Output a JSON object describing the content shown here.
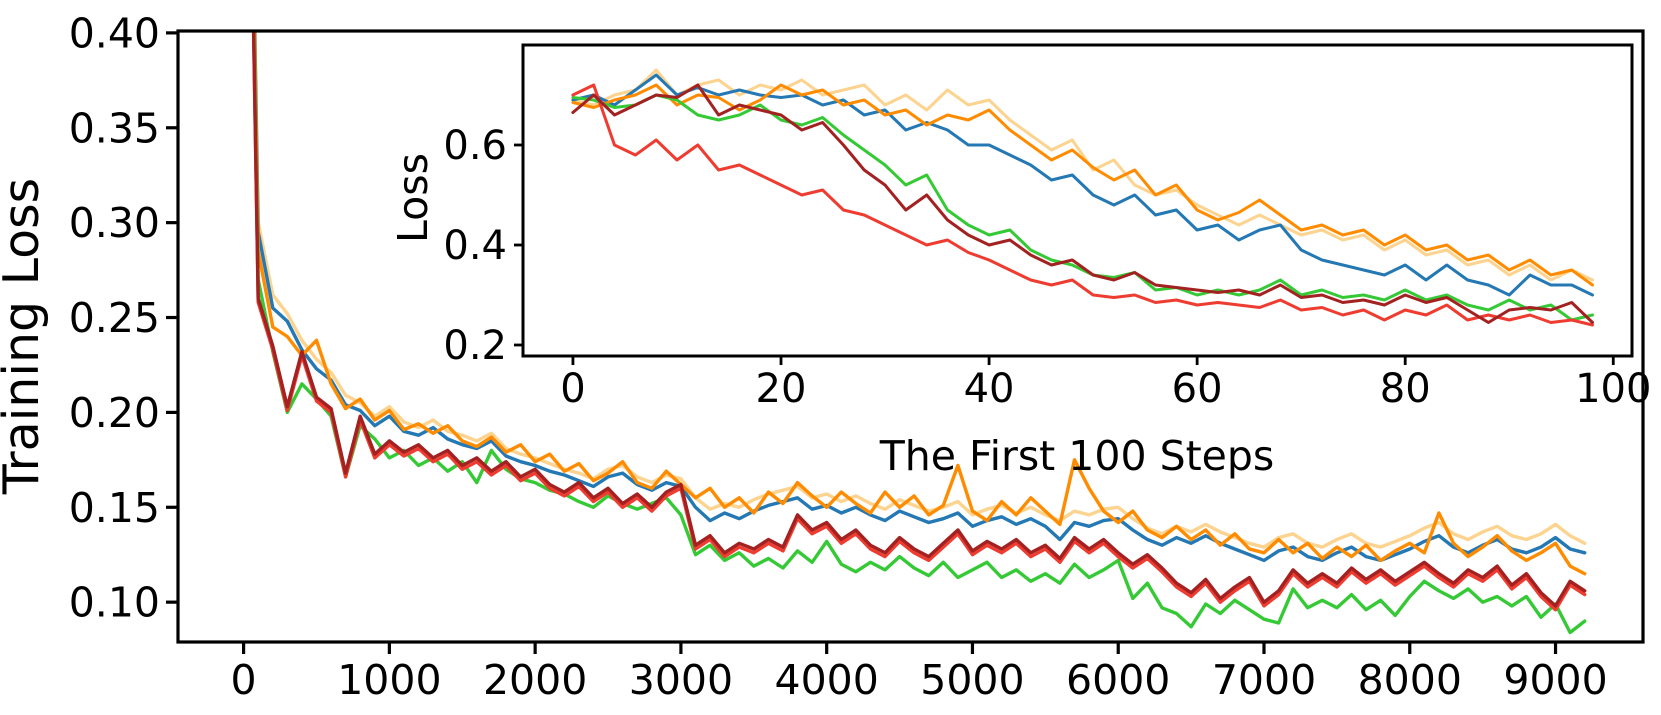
{
  "figure": {
    "background": "#ffffff",
    "axis_color": "#000000"
  },
  "chart_data": [
    {
      "type": "line",
      "title": "",
      "xlabel": "",
      "ylabel": "Training Loss",
      "xlim": [
        -450,
        9600
      ],
      "ylim": [
        0.079,
        0.401
      ],
      "grid": false,
      "legend": false,
      "xticks": {
        "values": [
          0,
          1000,
          2000,
          3000,
          4000,
          5000,
          6000,
          7000,
          8000,
          9000
        ],
        "labels": [
          "0",
          "1000",
          "2000",
          "3000",
          "4000",
          "5000",
          "6000",
          "7000",
          "8000",
          "9000"
        ]
      },
      "yticks": {
        "values": [
          0.1,
          0.15,
          0.2,
          0.25,
          0.3,
          0.35,
          0.4
        ],
        "labels": [
          "0.10",
          "0.15",
          "0.20",
          "0.25",
          "0.30",
          "0.35",
          "0.40"
        ]
      },
      "x_start": 0,
      "x_step": 100,
      "series": [
        {
          "name": "light-orange",
          "color": "#FCD38F",
          "values": [
            0.75,
            0.3,
            0.262,
            0.252,
            0.238,
            0.228,
            0.221,
            0.209,
            0.205,
            0.198,
            0.203,
            0.195,
            0.192,
            0.196,
            0.19,
            0.188,
            0.185,
            0.189,
            0.181,
            0.178,
            0.176,
            0.173,
            0.17,
            0.168,
            0.165,
            0.17,
            0.172,
            0.166,
            0.163,
            0.167,
            0.165,
            0.155,
            0.149,
            0.152,
            0.15,
            0.154,
            0.157,
            0.159,
            0.161,
            0.155,
            0.157,
            0.153,
            0.156,
            0.152,
            0.149,
            0.154,
            0.151,
            0.148,
            0.15,
            0.153,
            0.146,
            0.149,
            0.151,
            0.147,
            0.15,
            0.146,
            0.143,
            0.148,
            0.146,
            0.149,
            0.15,
            0.144,
            0.139,
            0.136,
            0.14,
            0.137,
            0.141,
            0.137,
            0.134,
            0.131,
            0.129,
            0.134,
            0.136,
            0.131,
            0.129,
            0.133,
            0.136,
            0.131,
            0.129,
            0.132,
            0.135,
            0.139,
            0.142,
            0.136,
            0.133,
            0.137,
            0.14,
            0.135,
            0.133,
            0.136,
            0.141,
            0.135,
            0.131
          ]
        },
        {
          "name": "blue",
          "color": "#2478B4",
          "values": [
            0.74,
            0.295,
            0.255,
            0.248,
            0.233,
            0.223,
            0.217,
            0.204,
            0.201,
            0.193,
            0.198,
            0.19,
            0.188,
            0.192,
            0.186,
            0.183,
            0.181,
            0.185,
            0.177,
            0.174,
            0.172,
            0.169,
            0.167,
            0.164,
            0.161,
            0.166,
            0.168,
            0.162,
            0.159,
            0.163,
            0.161,
            0.15,
            0.143,
            0.147,
            0.144,
            0.148,
            0.151,
            0.153,
            0.155,
            0.149,
            0.151,
            0.147,
            0.15,
            0.146,
            0.143,
            0.148,
            0.145,
            0.142,
            0.144,
            0.147,
            0.14,
            0.143,
            0.145,
            0.141,
            0.144,
            0.14,
            0.133,
            0.142,
            0.14,
            0.143,
            0.144,
            0.138,
            0.133,
            0.13,
            0.134,
            0.131,
            0.135,
            0.131,
            0.128,
            0.125,
            0.122,
            0.127,
            0.129,
            0.124,
            0.122,
            0.126,
            0.129,
            0.124,
            0.122,
            0.125,
            0.128,
            0.132,
            0.135,
            0.129,
            0.126,
            0.13,
            0.133,
            0.128,
            0.126,
            0.129,
            0.134,
            0.128,
            0.126
          ]
        },
        {
          "name": "orange",
          "color": "#FF8C00",
          "values": [
            0.73,
            0.285,
            0.245,
            0.24,
            0.23,
            0.238,
            0.215,
            0.202,
            0.207,
            0.196,
            0.201,
            0.191,
            0.194,
            0.189,
            0.193,
            0.185,
            0.182,
            0.187,
            0.179,
            0.183,
            0.174,
            0.178,
            0.169,
            0.173,
            0.164,
            0.168,
            0.174,
            0.163,
            0.16,
            0.169,
            0.162,
            0.155,
            0.16,
            0.15,
            0.155,
            0.147,
            0.158,
            0.152,
            0.163,
            0.156,
            0.15,
            0.158,
            0.152,
            0.147,
            0.158,
            0.15,
            0.156,
            0.146,
            0.151,
            0.172,
            0.148,
            0.143,
            0.153,
            0.146,
            0.155,
            0.148,
            0.141,
            0.175,
            0.16,
            0.148,
            0.142,
            0.148,
            0.138,
            0.134,
            0.14,
            0.133,
            0.138,
            0.13,
            0.136,
            0.128,
            0.126,
            0.133,
            0.126,
            0.131,
            0.123,
            0.129,
            0.124,
            0.13,
            0.122,
            0.127,
            0.131,
            0.126,
            0.147,
            0.131,
            0.124,
            0.129,
            0.135,
            0.127,
            0.122,
            0.126,
            0.131,
            0.119,
            0.115
          ]
        },
        {
          "name": "green",
          "color": "#36C936",
          "values": [
            0.72,
            0.27,
            0.232,
            0.2,
            0.215,
            0.207,
            0.198,
            0.166,
            0.193,
            0.186,
            0.176,
            0.18,
            0.172,
            0.176,
            0.169,
            0.174,
            0.163,
            0.18,
            0.17,
            0.165,
            0.163,
            0.159,
            0.157,
            0.153,
            0.15,
            0.156,
            0.152,
            0.149,
            0.152,
            0.155,
            0.146,
            0.125,
            0.13,
            0.122,
            0.126,
            0.119,
            0.123,
            0.118,
            0.127,
            0.121,
            0.132,
            0.12,
            0.116,
            0.121,
            0.117,
            0.124,
            0.118,
            0.114,
            0.121,
            0.113,
            0.117,
            0.121,
            0.113,
            0.117,
            0.111,
            0.115,
            0.11,
            0.12,
            0.113,
            0.117,
            0.122,
            0.102,
            0.11,
            0.097,
            0.094,
            0.087,
            0.099,
            0.094,
            0.101,
            0.096,
            0.091,
            0.089,
            0.107,
            0.097,
            0.101,
            0.097,
            0.104,
            0.096,
            0.101,
            0.093,
            0.103,
            0.111,
            0.106,
            0.102,
            0.107,
            0.1,
            0.103,
            0.098,
            0.103,
            0.092,
            0.099,
            0.084,
            0.09
          ]
        },
        {
          "name": "red",
          "color": "#EE3C31",
          "values": [
            0.708,
            0.258,
            0.233,
            0.201,
            0.23,
            0.206,
            0.2,
            0.166,
            0.196,
            0.176,
            0.183,
            0.177,
            0.181,
            0.174,
            0.178,
            0.17,
            0.174,
            0.167,
            0.172,
            0.164,
            0.168,
            0.16,
            0.156,
            0.161,
            0.153,
            0.158,
            0.15,
            0.155,
            0.148,
            0.156,
            0.16,
            0.128,
            0.133,
            0.124,
            0.129,
            0.126,
            0.131,
            0.127,
            0.144,
            0.136,
            0.14,
            0.131,
            0.136,
            0.128,
            0.124,
            0.132,
            0.126,
            0.122,
            0.129,
            0.136,
            0.125,
            0.13,
            0.126,
            0.131,
            0.124,
            0.128,
            0.121,
            0.132,
            0.126,
            0.131,
            0.124,
            0.118,
            0.123,
            0.116,
            0.108,
            0.103,
            0.11,
            0.1,
            0.106,
            0.111,
            0.098,
            0.104,
            0.115,
            0.108,
            0.113,
            0.108,
            0.116,
            0.11,
            0.115,
            0.109,
            0.114,
            0.119,
            0.113,
            0.108,
            0.115,
            0.111,
            0.117,
            0.107,
            0.113,
            0.103,
            0.096,
            0.109,
            0.104
          ]
        },
        {
          "name": "dark-red",
          "color": "#A32121",
          "values": [
            0.71,
            0.26,
            0.235,
            0.203,
            0.232,
            0.208,
            0.202,
            0.168,
            0.198,
            0.178,
            0.185,
            0.179,
            0.183,
            0.176,
            0.18,
            0.172,
            0.176,
            0.169,
            0.174,
            0.166,
            0.17,
            0.162,
            0.158,
            0.163,
            0.155,
            0.16,
            0.152,
            0.157,
            0.15,
            0.158,
            0.162,
            0.13,
            0.135,
            0.126,
            0.131,
            0.128,
            0.133,
            0.129,
            0.146,
            0.138,
            0.142,
            0.133,
            0.138,
            0.13,
            0.126,
            0.134,
            0.128,
            0.124,
            0.131,
            0.138,
            0.127,
            0.132,
            0.128,
            0.133,
            0.126,
            0.13,
            0.123,
            0.134,
            0.128,
            0.133,
            0.126,
            0.12,
            0.125,
            0.118,
            0.11,
            0.105,
            0.112,
            0.102,
            0.108,
            0.113,
            0.1,
            0.106,
            0.117,
            0.11,
            0.115,
            0.11,
            0.118,
            0.112,
            0.117,
            0.111,
            0.116,
            0.121,
            0.115,
            0.11,
            0.117,
            0.113,
            0.119,
            0.109,
            0.115,
            0.105,
            0.098,
            0.111,
            0.106
          ]
        }
      ]
    },
    {
      "type": "line",
      "title": "",
      "xlabel": "The First 100 Steps",
      "ylabel": "Loss",
      "xlim": [
        -4.8,
        101.8
      ],
      "ylim": [
        0.178,
        0.8
      ],
      "grid": false,
      "legend": false,
      "xticks": {
        "values": [
          0,
          20,
          40,
          60,
          80,
          100
        ],
        "labels": [
          "0",
          "20",
          "40",
          "60",
          "80",
          "100"
        ]
      },
      "yticks": {
        "values": [
          0.2,
          0.4,
          0.6
        ],
        "labels": [
          "0.2",
          "0.4",
          "0.6"
        ]
      },
      "x_start": 0,
      "x_step": 2,
      "series": [
        {
          "name": "light-orange",
          "color": "#FCD38F",
          "values": [
            0.69,
            0.68,
            0.7,
            0.71,
            0.75,
            0.7,
            0.72,
            0.73,
            0.7,
            0.72,
            0.71,
            0.73,
            0.7,
            0.71,
            0.72,
            0.68,
            0.7,
            0.67,
            0.71,
            0.68,
            0.69,
            0.65,
            0.62,
            0.59,
            0.61,
            0.55,
            0.57,
            0.52,
            0.5,
            0.51,
            0.48,
            0.46,
            0.44,
            0.46,
            0.44,
            0.42,
            0.43,
            0.41,
            0.42,
            0.39,
            0.41,
            0.38,
            0.39,
            0.36,
            0.37,
            0.34,
            0.36,
            0.33,
            0.35,
            0.33
          ]
        },
        {
          "name": "blue",
          "color": "#2478B4",
          "values": [
            0.69,
            0.7,
            0.68,
            0.71,
            0.74,
            0.7,
            0.715,
            0.7,
            0.71,
            0.7,
            0.695,
            0.7,
            0.68,
            0.69,
            0.66,
            0.67,
            0.63,
            0.645,
            0.63,
            0.6,
            0.6,
            0.58,
            0.56,
            0.53,
            0.54,
            0.5,
            0.48,
            0.5,
            0.46,
            0.47,
            0.43,
            0.44,
            0.41,
            0.43,
            0.44,
            0.39,
            0.37,
            0.36,
            0.35,
            0.34,
            0.36,
            0.33,
            0.36,
            0.33,
            0.32,
            0.3,
            0.34,
            0.32,
            0.32,
            0.3
          ]
        },
        {
          "name": "orange",
          "color": "#FF8C00",
          "values": [
            0.685,
            0.675,
            0.69,
            0.7,
            0.72,
            0.68,
            0.7,
            0.695,
            0.67,
            0.69,
            0.72,
            0.7,
            0.71,
            0.68,
            0.69,
            0.66,
            0.67,
            0.64,
            0.66,
            0.65,
            0.67,
            0.63,
            0.6,
            0.57,
            0.59,
            0.555,
            0.53,
            0.55,
            0.5,
            0.52,
            0.47,
            0.45,
            0.465,
            0.49,
            0.46,
            0.43,
            0.44,
            0.42,
            0.43,
            0.4,
            0.42,
            0.39,
            0.4,
            0.37,
            0.38,
            0.35,
            0.37,
            0.34,
            0.35,
            0.32
          ]
        },
        {
          "name": "green",
          "color": "#36C936",
          "values": [
            0.695,
            0.69,
            0.675,
            0.68,
            0.7,
            0.69,
            0.66,
            0.65,
            0.66,
            0.68,
            0.65,
            0.64,
            0.655,
            0.62,
            0.59,
            0.56,
            0.52,
            0.54,
            0.47,
            0.44,
            0.42,
            0.43,
            0.39,
            0.37,
            0.36,
            0.34,
            0.335,
            0.345,
            0.31,
            0.315,
            0.3,
            0.31,
            0.3,
            0.31,
            0.33,
            0.3,
            0.31,
            0.295,
            0.3,
            0.29,
            0.31,
            0.29,
            0.3,
            0.28,
            0.27,
            0.29,
            0.27,
            0.28,
            0.25,
            0.26
          ]
        },
        {
          "name": "red",
          "color": "#EE3C31",
          "values": [
            0.7,
            0.72,
            0.6,
            0.58,
            0.61,
            0.57,
            0.6,
            0.55,
            0.56,
            0.54,
            0.52,
            0.5,
            0.51,
            0.47,
            0.46,
            0.44,
            0.42,
            0.4,
            0.41,
            0.385,
            0.37,
            0.35,
            0.33,
            0.32,
            0.33,
            0.3,
            0.295,
            0.3,
            0.285,
            0.29,
            0.28,
            0.285,
            0.28,
            0.275,
            0.29,
            0.27,
            0.275,
            0.26,
            0.27,
            0.25,
            0.27,
            0.26,
            0.28,
            0.25,
            0.26,
            0.25,
            0.26,
            0.245,
            0.25,
            0.24
          ]
        },
        {
          "name": "dark-red",
          "color": "#A32121",
          "values": [
            0.665,
            0.7,
            0.66,
            0.68,
            0.7,
            0.695,
            0.72,
            0.66,
            0.68,
            0.67,
            0.66,
            0.63,
            0.645,
            0.6,
            0.55,
            0.52,
            0.47,
            0.5,
            0.45,
            0.42,
            0.4,
            0.41,
            0.38,
            0.36,
            0.37,
            0.34,
            0.33,
            0.345,
            0.32,
            0.315,
            0.31,
            0.305,
            0.31,
            0.3,
            0.32,
            0.295,
            0.3,
            0.285,
            0.29,
            0.28,
            0.3,
            0.285,
            0.295,
            0.27,
            0.245,
            0.27,
            0.275,
            0.27,
            0.285,
            0.245
          ]
        }
      ]
    }
  ]
}
